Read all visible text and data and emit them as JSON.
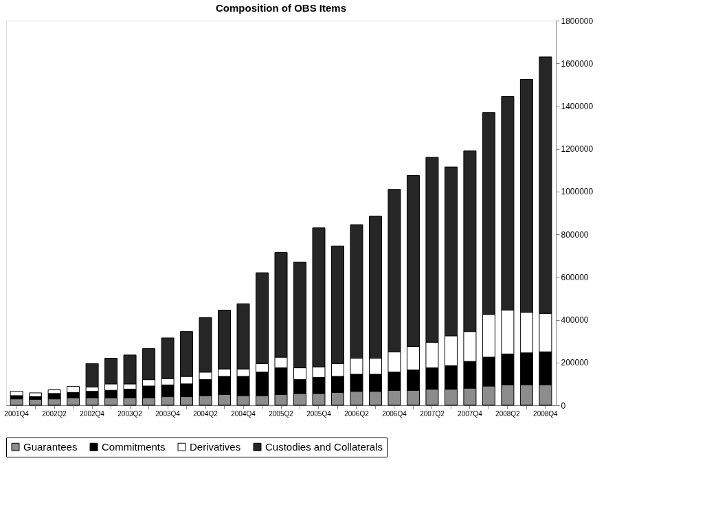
{
  "chart_data": {
    "type": "bar",
    "title": "Composition of OBS Items",
    "stacked": true,
    "categories": [
      "2001Q4",
      null,
      "2002Q2",
      null,
      "2002Q4",
      null,
      "2003Q2",
      null,
      "2003Q4",
      null,
      "2004Q2",
      null,
      "2004Q4",
      null,
      "2005Q2",
      null,
      "2005Q4",
      null,
      "2006Q2",
      null,
      "2006Q4",
      null,
      "2007Q2",
      null,
      "2007Q4",
      null,
      "2008Q2",
      null,
      "2008Q4"
    ],
    "series": [
      {
        "name": "Guarantees",
        "color": "#8c8c8c",
        "values": [
          30000,
          28000,
          30000,
          35000,
          35000,
          35000,
          35000,
          35000,
          40000,
          40000,
          45000,
          50000,
          45000,
          45000,
          50000,
          55000,
          55000,
          60000,
          65000,
          65000,
          70000,
          70000,
          75000,
          75000,
          80000,
          90000,
          95000,
          95000,
          95000
        ]
      },
      {
        "name": "Commitments",
        "color": "#000000",
        "values": [
          15000,
          12000,
          25000,
          25000,
          30000,
          35000,
          40000,
          55000,
          55000,
          60000,
          75000,
          85000,
          90000,
          110000,
          125000,
          65000,
          75000,
          75000,
          80000,
          80000,
          85000,
          95000,
          100000,
          110000,
          125000,
          135000,
          145000,
          150000,
          155000
        ]
      },
      {
        "name": "Derivatives",
        "color": "#ffffff",
        "values": [
          20000,
          18000,
          17000,
          28000,
          20000,
          30000,
          25000,
          30000,
          30000,
          35000,
          35000,
          35000,
          35000,
          40000,
          50000,
          55000,
          50000,
          60000,
          75000,
          75000,
          95000,
          110000,
          120000,
          140000,
          140000,
          200000,
          205000,
          190000,
          180000
        ]
      },
      {
        "name": "Custodies and Collaterals",
        "color": "#262626",
        "values": [
          null,
          null,
          null,
          null,
          110000,
          120000,
          135000,
          145000,
          190000,
          210000,
          255000,
          275000,
          305000,
          425000,
          490000,
          495000,
          650000,
          550000,
          625000,
          665000,
          760000,
          800000,
          865000,
          790000,
          845000,
          945000,
          1000000,
          1090000,
          1200000
        ]
      }
    ],
    "ylim": [
      0,
      1800000
    ],
    "yticks": [
      0,
      200000,
      400000,
      600000,
      800000,
      1000000,
      1200000,
      1400000,
      1600000,
      1800000
    ],
    "grid": false,
    "legend": "bottom"
  }
}
